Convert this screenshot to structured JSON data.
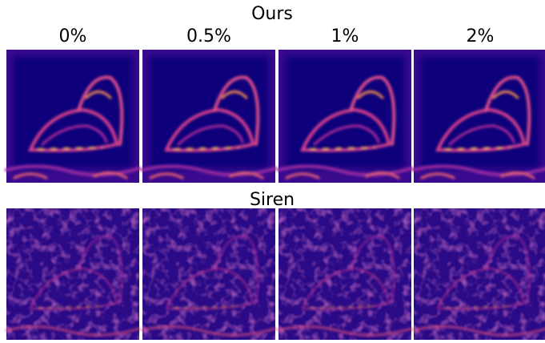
{
  "column_labels": [
    "0%",
    "0.5%",
    "1%",
    "2%"
  ],
  "rows": [
    {
      "label": "Ours"
    },
    {
      "label": "Siren"
    }
  ]
}
